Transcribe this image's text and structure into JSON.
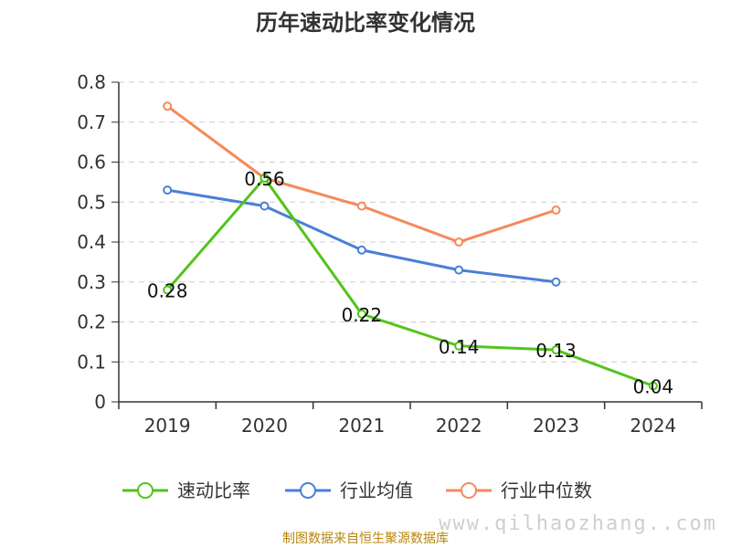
{
  "colors": {
    "speed_ratio": "#52c41a",
    "industry_avg": "#4a7fd8",
    "industry_median": "#f5895a",
    "grid": "#cccccc",
    "axis": "#333333",
    "source_text": "#b8860b",
    "watermark": "#cfcfcf"
  },
  "source_note": "制图数据来自恒生聚源数据库",
  "watermark": "www.qilhaozhang..com",
  "chart_data": {
    "type": "line",
    "title": "历年速动比率变化情况",
    "xlabel": "",
    "ylabel": "",
    "categories": [
      "2019",
      "2020",
      "2021",
      "2022",
      "2023",
      "2024"
    ],
    "ylim": [
      0,
      0.8
    ],
    "yticks": [
      "0",
      "0.1",
      "0.2",
      "0.3",
      "0.4",
      "0.5",
      "0.6",
      "0.7",
      "0.8"
    ],
    "grid": true,
    "legend_position": "bottom",
    "series": [
      {
        "name": "速动比率",
        "values": [
          0.28,
          0.56,
          0.22,
          0.14,
          0.13,
          0.04
        ],
        "labels": [
          "0.28",
          "0.56",
          "0.22",
          "0.14",
          "0.13",
          "0.04"
        ],
        "color": "#52c41a"
      },
      {
        "name": "行业均值",
        "values": [
          0.53,
          0.49,
          0.38,
          0.33,
          0.3,
          null
        ],
        "color": "#4a7fd8"
      },
      {
        "name": "行业中位数",
        "values": [
          0.74,
          0.56,
          0.49,
          0.4,
          0.48,
          null
        ],
        "color": "#f5895a"
      }
    ]
  }
}
